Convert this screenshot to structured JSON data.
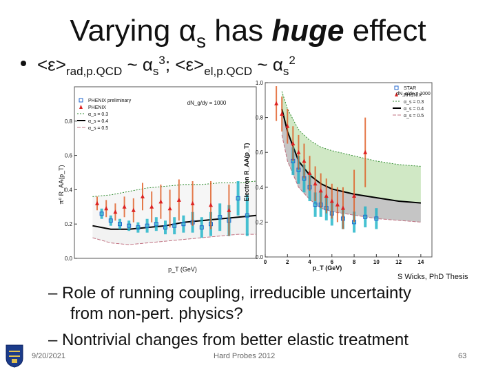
{
  "slide": {
    "title_prefix": "Varying ",
    "title_symbol": "α",
    "title_sub": "s",
    "title_mid": " has ",
    "title_emph": "huge",
    "title_suffix": " effect",
    "bullet": {
      "part1": "<ε>",
      "sub1": "rad,p.QCD",
      "part2": " ~ α",
      "sub2": "s",
      "sup2": "3",
      "part3": "; <ε>",
      "sub3": "el,p.QCD",
      "part4": " ~ α",
      "sub4": "s",
      "sup4": "2"
    },
    "credit": "S Wicks, PhD Thesis",
    "sub_bullets": [
      "– Role of running coupling, irreducible uncertainty",
      "from non-pert. physics?",
      "– Nontrivial changes from better elastic treatment"
    ],
    "footer": {
      "date": "9/20/2021",
      "conference": "Hard Probes 2012",
      "page": "63"
    }
  },
  "chart_data": [
    {
      "type": "line",
      "title": "",
      "xlabel": "p_T (GeV)",
      "ylabel": "π⁰ R_AA(p_T)",
      "xlim": [
        0,
        20
      ],
      "ylim": [
        0,
        1.0
      ],
      "yticks": [
        "0.0",
        "0.2",
        "0.4",
        "0.6",
        "0.8"
      ],
      "annotation": "dN_g/dy = 1000",
      "legend": [
        "PHENIX preliminary",
        "PHENIX",
        "α_s = 0.3",
        "α_s = 0.4",
        "α_s = 0.5"
      ],
      "series": [
        {
          "name": "α_s = 0.3",
          "color": "#2e8b2e",
          "x": [
            2,
            4,
            6,
            8,
            10,
            12,
            14,
            16,
            18,
            20
          ],
          "y": [
            0.36,
            0.37,
            0.39,
            0.41,
            0.42,
            0.43,
            0.43,
            0.44,
            0.44,
            0.45
          ]
        },
        {
          "name": "α_s = 0.4",
          "color": "#000000",
          "x": [
            2,
            4,
            6,
            8,
            10,
            12,
            14,
            16,
            18,
            20
          ],
          "y": [
            0.19,
            0.17,
            0.17,
            0.18,
            0.19,
            0.21,
            0.22,
            0.23,
            0.24,
            0.25
          ]
        },
        {
          "name": "α_s = 0.5",
          "color": "#c07080",
          "x": [
            2,
            4,
            6,
            8,
            10,
            12,
            14,
            16,
            18,
            20
          ],
          "y": [
            0.12,
            0.09,
            0.08,
            0.09,
            0.1,
            0.11,
            0.12,
            0.13,
            0.14,
            0.14
          ]
        }
      ],
      "points": [
        {
          "name": "PHENIX preliminary",
          "color": "#2266cc",
          "x": [
            3,
            4,
            5,
            6,
            7,
            8,
            9,
            10,
            11,
            12,
            13,
            14,
            15,
            16,
            17,
            18,
            19
          ],
          "y": [
            0.26,
            0.22,
            0.2,
            0.19,
            0.18,
            0.19,
            0.2,
            0.18,
            0.19,
            0.2,
            0.21,
            0.18,
            0.2,
            0.24,
            0.22,
            0.35,
            0.25
          ],
          "err": [
            0.03,
            0.03,
            0.03,
            0.03,
            0.03,
            0.04,
            0.04,
            0.04,
            0.05,
            0.05,
            0.06,
            0.06,
            0.07,
            0.08,
            0.09,
            0.1,
            0.12
          ]
        },
        {
          "name": "PHENIX",
          "color": "#dd2222",
          "x": [
            2.5,
            3.5,
            4.5,
            5.5,
            6.5,
            7.5,
            8.5,
            9.5,
            10.5,
            11.5,
            13,
            15,
            17
          ],
          "y": [
            0.32,
            0.29,
            0.27,
            0.3,
            0.28,
            0.36,
            0.3,
            0.33,
            0.29,
            0.34,
            0.32,
            0.31,
            0.28
          ],
          "err": [
            0.04,
            0.05,
            0.05,
            0.06,
            0.07,
            0.08,
            0.09,
            0.1,
            0.11,
            0.12,
            0.13,
            0.14,
            0.15
          ]
        }
      ]
    },
    {
      "type": "line",
      "title": "",
      "xlabel": "p_T (GeV)",
      "ylabel": "Electron R_AA(p_T)",
      "xlim": [
        0,
        15
      ],
      "ylim": [
        0,
        1.0
      ],
      "xticks": [
        "0",
        "2",
        "4",
        "6",
        "8",
        "10",
        "12",
        "14"
      ],
      "yticks": [
        "0.0",
        "0.2",
        "0.4",
        "0.6",
        "0.8",
        "1.0"
      ],
      "annotation": "dN_g/dy = 1000",
      "legend": [
        "STAR",
        "PHENIX",
        "α_s = 0.3",
        "α_s = 0.4",
        "α_s = 0.5"
      ],
      "series": [
        {
          "name": "α_s = 0.3",
          "color": "#2e8b2e",
          "x": [
            1.5,
            2,
            3,
            4,
            5,
            6,
            8,
            10,
            12,
            14
          ],
          "y": [
            0.95,
            0.85,
            0.73,
            0.67,
            0.63,
            0.61,
            0.58,
            0.55,
            0.53,
            0.52
          ]
        },
        {
          "name": "α_s = 0.4",
          "color": "#000000",
          "x": [
            1.5,
            2,
            3,
            4,
            5,
            6,
            8,
            10,
            12,
            14
          ],
          "y": [
            0.85,
            0.72,
            0.55,
            0.47,
            0.42,
            0.39,
            0.36,
            0.34,
            0.32,
            0.31
          ]
        },
        {
          "name": "α_s = 0.5",
          "color": "#c07080",
          "x": [
            1.5,
            2,
            3,
            4,
            5,
            6,
            8,
            10,
            12,
            14
          ],
          "y": [
            0.7,
            0.55,
            0.4,
            0.33,
            0.28,
            0.26,
            0.24,
            0.22,
            0.21,
            0.2
          ]
        }
      ],
      "points": [
        {
          "name": "STAR",
          "color": "#2266cc",
          "x": [
            2.5,
            3,
            3.5,
            4,
            4.5,
            5,
            5.5,
            6,
            7,
            8,
            9,
            10
          ],
          "y": [
            0.55,
            0.5,
            0.45,
            0.4,
            0.3,
            0.3,
            0.28,
            0.25,
            0.22,
            0.2,
            0.23,
            0.22
          ],
          "err": [
            0.08,
            0.08,
            0.08,
            0.08,
            0.07,
            0.07,
            0.07,
            0.07,
            0.06,
            0.06,
            0.06,
            0.06
          ]
        },
        {
          "name": "PHENIX",
          "color": "#dd2222",
          "x": [
            1,
            1.5,
            2,
            2.5,
            3,
            3.5,
            4,
            4.5,
            5,
            5.5,
            6,
            6.5,
            7,
            8,
            9
          ],
          "y": [
            0.88,
            0.82,
            0.75,
            0.65,
            0.6,
            0.55,
            0.48,
            0.42,
            0.38,
            0.35,
            0.32,
            0.3,
            0.28,
            0.35,
            0.6
          ],
          "err": [
            0.1,
            0.1,
            0.1,
            0.1,
            0.1,
            0.1,
            0.1,
            0.1,
            0.1,
            0.1,
            0.1,
            0.1,
            0.12,
            0.15,
            0.2
          ]
        }
      ]
    }
  ]
}
